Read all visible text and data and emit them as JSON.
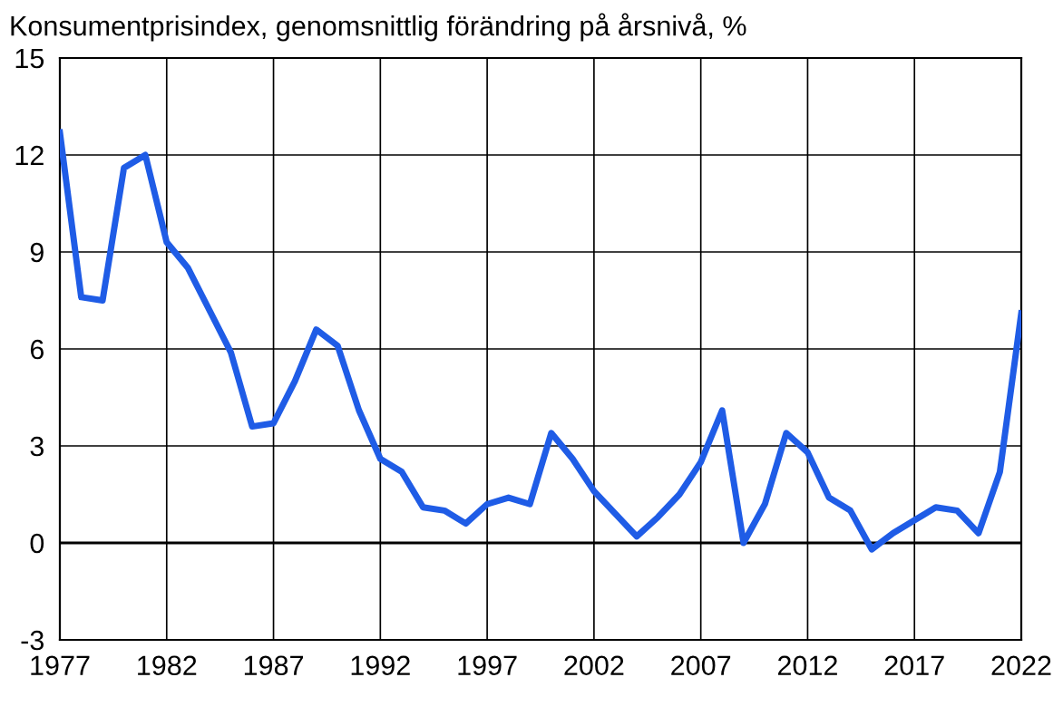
{
  "chart_data": {
    "type": "line",
    "title": "Konsumentprisindex, genomsnittlig förändring på årsnivå, %",
    "x": [
      1977,
      1978,
      1979,
      1980,
      1981,
      1982,
      1983,
      1984,
      1985,
      1986,
      1987,
      1988,
      1989,
      1990,
      1991,
      1992,
      1993,
      1994,
      1995,
      1996,
      1997,
      1998,
      1999,
      2000,
      2001,
      2002,
      2003,
      2004,
      2005,
      2006,
      2007,
      2008,
      2009,
      2010,
      2011,
      2012,
      2013,
      2014,
      2015,
      2016,
      2017,
      2018,
      2019,
      2020,
      2021,
      2022
    ],
    "series": [
      {
        "color": "#1f5ce6",
        "values": [
          12.7,
          7.6,
          7.5,
          11.6,
          12.0,
          9.3,
          8.5,
          7.2,
          5.9,
          3.6,
          3.7,
          5.0,
          6.6,
          6.1,
          4.1,
          2.6,
          2.2,
          1.1,
          1.0,
          0.6,
          1.2,
          1.4,
          1.2,
          3.4,
          2.6,
          1.6,
          0.9,
          0.2,
          0.8,
          1.5,
          2.5,
          4.1,
          0.0,
          1.2,
          3.4,
          2.8,
          1.4,
          1.0,
          -0.2,
          0.3,
          0.7,
          1.1,
          1.0,
          0.3,
          2.2,
          7.1
        ]
      }
    ],
    "xlim": [
      1977,
      2022
    ],
    "xticks": [
      1977,
      1982,
      1987,
      1992,
      1997,
      2002,
      2007,
      2012,
      2017,
      2022
    ],
    "ylim": [
      -3,
      15
    ],
    "yticks": [
      -3,
      0,
      3,
      6,
      9,
      12,
      15
    ],
    "ref_lines": [
      {
        "axis": "y",
        "value": 0,
        "color": "#000000"
      }
    ],
    "grid": true,
    "legend": false,
    "marker": "none",
    "line_style": "solid"
  }
}
